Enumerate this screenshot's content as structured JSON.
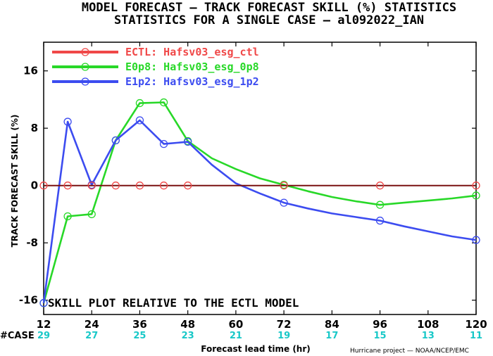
{
  "title_line1": "MODEL FORECAST — TRACK FORECAST SKILL (%) STATISTICS",
  "title_line2": "STATISTICS FOR A SINGLE CASE — al092022_IAN",
  "annotation": "SKILL PLOT RELATIVE TO THE ECTL MODEL",
  "credit": "Hurricane project — NOAA/NCEP/EMC",
  "case_label": "#CASE",
  "colors": {
    "ECTL": "#f04848",
    "E0p8": "#28d828",
    "E1p2": "#3c4cf0",
    "case": "#18c8c8",
    "zero_line": "#7a1010"
  },
  "chart_data": {
    "type": "line",
    "xlabel": "Forecast lead time (hr)",
    "ylabel": "TRACK FORECAST SKILL (%)",
    "xlim": [
      12,
      120
    ],
    "ylim": [
      -18,
      20
    ],
    "x_ticks": [
      12,
      24,
      36,
      48,
      60,
      72,
      84,
      96,
      108,
      120
    ],
    "y_ticks": [
      -16,
      -8,
      0,
      8,
      16
    ],
    "case_counts": [
      {
        "x": 12,
        "n": "29"
      },
      {
        "x": 24,
        "n": "27"
      },
      {
        "x": 36,
        "n": "25"
      },
      {
        "x": 48,
        "n": "23"
      },
      {
        "x": 60,
        "n": "21"
      },
      {
        "x": 72,
        "n": "19"
      },
      {
        "x": 84,
        "n": "17"
      },
      {
        "x": 96,
        "n": "15"
      },
      {
        "x": 108,
        "n": "13"
      },
      {
        "x": 120,
        "n": "11"
      }
    ],
    "legend_position": "top-left",
    "series": [
      {
        "name": "ECTL: Hafsv03_esg_ctl",
        "color": "#f04848",
        "x": [
          12,
          18,
          24,
          30,
          36,
          42,
          48,
          54,
          60,
          66,
          72,
          78,
          84,
          90,
          96,
          102,
          108,
          114,
          120
        ],
        "y": [
          0,
          0,
          0,
          0,
          0,
          0,
          0,
          0,
          0,
          0,
          0,
          0,
          0,
          0,
          0,
          0,
          0,
          0,
          0
        ],
        "marker_x": [
          12,
          18,
          24,
          30,
          36,
          42,
          48,
          72,
          96,
          120
        ]
      },
      {
        "name": "E0p8: Hafsv03_esg_0p8",
        "color": "#28d828",
        "x": [
          12,
          18,
          24,
          30,
          36,
          42,
          48,
          54,
          60,
          66,
          72,
          78,
          84,
          90,
          96,
          102,
          108,
          114,
          120
        ],
        "y": [
          -16.4,
          -4.3,
          -4.0,
          6.3,
          11.5,
          11.6,
          6.2,
          3.8,
          2.3,
          1.0,
          0.1,
          -0.8,
          -1.6,
          -2.2,
          -2.7,
          -2.4,
          -2.1,
          -1.8,
          -1.4
        ],
        "marker_x": [
          12,
          18,
          24,
          30,
          36,
          42,
          48,
          72,
          96,
          120
        ]
      },
      {
        "name": "E1p2: Hafsv03_esg_1p2",
        "color": "#3c4cf0",
        "x": [
          12,
          18,
          24,
          30,
          36,
          42,
          48,
          54,
          60,
          66,
          72,
          78,
          84,
          90,
          96,
          102,
          108,
          114,
          120
        ],
        "y": [
          -16.4,
          8.9,
          0.1,
          6.3,
          9.1,
          5.8,
          6.1,
          2.9,
          0.3,
          -1.1,
          -2.4,
          -3.2,
          -3.9,
          -4.4,
          -4.9,
          -5.7,
          -6.4,
          -7.1,
          -7.6
        ],
        "marker_x": [
          12,
          18,
          24,
          30,
          36,
          42,
          48,
          72,
          96,
          120
        ]
      }
    ]
  }
}
